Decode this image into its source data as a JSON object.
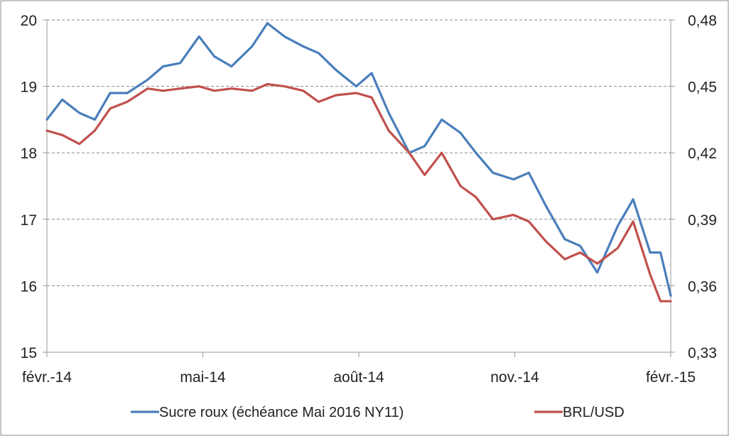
{
  "chart_data": {
    "type": "line",
    "x_ticks": [
      "févr.-14",
      "mai-14",
      "août-14",
      "nov.-14",
      "févr.-15"
    ],
    "x_range": [
      "2014-02-01",
      "2015-02-01"
    ],
    "y_left": {
      "ylim": [
        15,
        20
      ],
      "ticks": [
        "15",
        "16",
        "17",
        "18",
        "19",
        "20"
      ]
    },
    "y_right": {
      "ylim": [
        0.33,
        0.48
      ],
      "ticks": [
        "0,33",
        "0,36",
        "0,39",
        "0,42",
        "0,45",
        "0,48"
      ]
    },
    "grid": true,
    "legend_position": "bottom",
    "series": [
      {
        "name": "Sucre roux (échéance Mai 2016 NY11)",
        "axis": "left",
        "color": "#4a7ebb",
        "points": [
          [
            "2014-02-01",
            18.5
          ],
          [
            "2014-02-10",
            18.8
          ],
          [
            "2014-02-20",
            18.6
          ],
          [
            "2014-03-01",
            18.5
          ],
          [
            "2014-03-10",
            18.9
          ],
          [
            "2014-03-20",
            18.9
          ],
          [
            "2014-04-01",
            19.1
          ],
          [
            "2014-04-10",
            19.3
          ],
          [
            "2014-04-20",
            19.35
          ],
          [
            "2014-05-01",
            19.75
          ],
          [
            "2014-05-10",
            19.45
          ],
          [
            "2014-05-20",
            19.3
          ],
          [
            "2014-06-01",
            19.6
          ],
          [
            "2014-06-10",
            19.95
          ],
          [
            "2014-06-20",
            19.75
          ],
          [
            "2014-07-01",
            19.6
          ],
          [
            "2014-07-10",
            19.5
          ],
          [
            "2014-07-20",
            19.25
          ],
          [
            "2014-08-01",
            19.0
          ],
          [
            "2014-08-10",
            19.2
          ],
          [
            "2014-08-20",
            18.6
          ],
          [
            "2014-09-01",
            18.0
          ],
          [
            "2014-09-10",
            18.1
          ],
          [
            "2014-09-20",
            18.5
          ],
          [
            "2014-10-01",
            18.3
          ],
          [
            "2014-10-10",
            18.0
          ],
          [
            "2014-10-20",
            17.7
          ],
          [
            "2014-11-01",
            17.6
          ],
          [
            "2014-11-10",
            17.7
          ],
          [
            "2014-11-20",
            17.2
          ],
          [
            "2014-12-01",
            16.7
          ],
          [
            "2014-12-10",
            16.6
          ],
          [
            "2014-12-20",
            16.2
          ],
          [
            "2015-01-01",
            16.9
          ],
          [
            "2015-01-10",
            17.3
          ],
          [
            "2015-01-20",
            16.5
          ],
          [
            "2015-01-26",
            16.5
          ],
          [
            "2015-02-01",
            15.85
          ]
        ]
      },
      {
        "name": "BRL/USD",
        "axis": "right",
        "color": "#c0504d",
        "points": [
          [
            "2014-02-01",
            0.43
          ],
          [
            "2014-02-10",
            0.428
          ],
          [
            "2014-02-20",
            0.424
          ],
          [
            "2014-03-01",
            0.43
          ],
          [
            "2014-03-10",
            0.44
          ],
          [
            "2014-03-20",
            0.443
          ],
          [
            "2014-04-01",
            0.449
          ],
          [
            "2014-04-10",
            0.448
          ],
          [
            "2014-04-20",
            0.449
          ],
          [
            "2014-05-01",
            0.45
          ],
          [
            "2014-05-10",
            0.448
          ],
          [
            "2014-05-20",
            0.449
          ],
          [
            "2014-06-01",
            0.448
          ],
          [
            "2014-06-10",
            0.451
          ],
          [
            "2014-06-20",
            0.45
          ],
          [
            "2014-07-01",
            0.448
          ],
          [
            "2014-07-10",
            0.443
          ],
          [
            "2014-07-20",
            0.446
          ],
          [
            "2014-08-01",
            0.447
          ],
          [
            "2014-08-10",
            0.445
          ],
          [
            "2014-08-20",
            0.43
          ],
          [
            "2014-09-01",
            0.42
          ],
          [
            "2014-09-10",
            0.41
          ],
          [
            "2014-09-20",
            0.42
          ],
          [
            "2014-10-01",
            0.405
          ],
          [
            "2014-10-10",
            0.4
          ],
          [
            "2014-10-20",
            0.39
          ],
          [
            "2014-11-01",
            0.392
          ],
          [
            "2014-11-10",
            0.389
          ],
          [
            "2014-11-20",
            0.38
          ],
          [
            "2014-12-01",
            0.372
          ],
          [
            "2014-12-10",
            0.375
          ],
          [
            "2014-12-20",
            0.37
          ],
          [
            "2015-01-01",
            0.377
          ],
          [
            "2015-01-10",
            0.389
          ],
          [
            "2015-01-20",
            0.365
          ],
          [
            "2015-01-26",
            0.353
          ],
          [
            "2015-02-01",
            0.353
          ]
        ]
      }
    ]
  }
}
